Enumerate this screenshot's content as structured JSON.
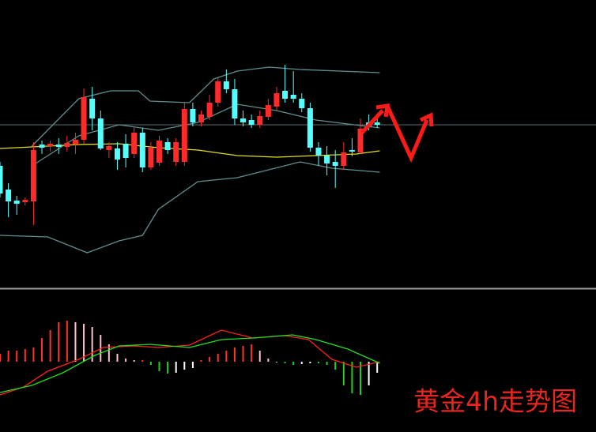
{
  "chart_data": [
    {
      "type": "candlestick",
      "title": "黄金4h走势图",
      "xlim": [
        0,
        71.1
      ],
      "ylim": [
        0,
        365
      ],
      "up_color": "#ff2a2a",
      "down_color": "#54ffff",
      "open": [
        155,
        125,
        111,
        109,
        110,
        182,
        180,
        182,
        179,
        182,
        188,
        240,
        215,
        175,
        177,
        183,
        170,
        197,
        153,
        159,
        185,
        160,
        160,
        227,
        210,
        217,
        235,
        262,
        252,
        215,
        213,
        207,
        217,
        230,
        250,
        245,
        240,
        228,
        178,
        168,
        160,
        155,
        175,
        172,
        210,
        210
      ],
      "close": [
        120,
        110,
        107,
        112,
        175,
        178,
        183,
        179,
        184,
        188,
        242,
        215,
        177,
        180,
        163,
        165,
        197,
        153,
        178,
        187,
        175,
        185,
        227,
        210,
        220,
        235,
        262,
        252,
        215,
        210,
        207,
        218,
        232,
        247,
        240,
        240,
        228,
        178,
        168,
        158,
        155,
        172,
        173,
        202,
        205,
        207
      ],
      "high": [
        160,
        133,
        117,
        115,
        185,
        187,
        187,
        190,
        193,
        197,
        253,
        255,
        225,
        185,
        185,
        195,
        205,
        203,
        185,
        193,
        190,
        190,
        235,
        235,
        225,
        245,
        267,
        277,
        265,
        225,
        220,
        225,
        240,
        255,
        283,
        275,
        247,
        235,
        185,
        180,
        175,
        185,
        190,
        215,
        220,
        217
      ],
      "low": [
        115,
        90,
        93,
        105,
        80,
        170,
        173,
        170,
        173,
        170,
        183,
        200,
        175,
        165,
        150,
        153,
        165,
        147,
        150,
        155,
        170,
        155,
        155,
        205,
        205,
        213,
        230,
        247,
        207,
        205,
        203,
        203,
        213,
        225,
        235,
        235,
        223,
        173,
        155,
        143,
        127,
        150,
        167,
        170,
        200,
        203
      ],
      "lines": [
        {
          "color": "#5f8f8f",
          "x": [
            3.8,
            9.4,
            13.2,
            16.5,
            17.9,
            22.6,
            25.5,
            28.3,
            32.1,
            35.8,
            45.3
          ],
          "values": [
            180,
            240,
            250,
            250,
            237,
            235,
            265,
            275,
            280,
            277,
            273
          ]
        },
        {
          "color": "#5f8f8f",
          "x": [
            3.8,
            9.4,
            14.2,
            18.9,
            23.6,
            28.3,
            33,
            37.7,
            45.3
          ],
          "values": [
            155,
            193,
            207,
            200,
            210,
            233,
            225,
            213,
            203
          ]
        },
        {
          "color": "#5f8f8f",
          "x": [
            0,
            5.7,
            10.4,
            14.2,
            17,
            18.9,
            23.6,
            28.3,
            35.8,
            39.6,
            45.3
          ],
          "values": [
            67,
            65,
            45,
            60,
            67,
            100,
            135,
            140,
            160,
            152,
            147
          ]
        },
        {
          "color": "#e0e020",
          "x": [
            0,
            3.8,
            9.4,
            14.2,
            18.9,
            23.6,
            28.3,
            33,
            37.7,
            42.5,
            45.3
          ],
          "values": [
            177,
            179,
            182,
            183,
            178,
            175,
            168,
            166,
            168,
            170,
            174
          ]
        }
      ],
      "price_line": {
        "value": 207,
        "color": "#5a6a70"
      }
    },
    {
      "type": "macd",
      "xlim": [
        0,
        71.1
      ],
      "ylim": [
        -89,
        88
      ],
      "rise_pos_color": "#ff3030",
      "fall_pos_color": "#ffc0cb",
      "fall_neg_color": "#20d020",
      "rise_neg_color": "#ffffff",
      "values": [
        10,
        14,
        14,
        16,
        18,
        30,
        40,
        50,
        52,
        50,
        48,
        44,
        34,
        22,
        10,
        4,
        2,
        2,
        -4,
        -12,
        -15,
        -14,
        -10,
        -8,
        2,
        6,
        10,
        14,
        18,
        20,
        22,
        14,
        4,
        0,
        -2,
        -4,
        -3,
        -2,
        -2,
        -4,
        -10,
        -30,
        -40,
        -42,
        -30,
        -14
      ],
      "lines": [
        {
          "color": "#ff2020",
          "x": [
            0,
            2.8,
            5.7,
            9.4,
            12.3,
            16,
            18.9,
            22.6,
            26.4,
            30.2,
            34,
            36.8,
            39.6,
            42.5,
            45.3
          ],
          "values": [
            -42,
            -32,
            -12,
            3,
            18,
            20,
            18,
            21,
            40,
            30,
            33,
            28,
            3,
            -7,
            0
          ]
        },
        {
          "color": "#20e020",
          "x": [
            0,
            3.8,
            7.5,
            11.3,
            14.2,
            17.9,
            22.6,
            26.4,
            30.2,
            34.9,
            37.7,
            41.5,
            45.3
          ],
          "values": [
            -39,
            -30,
            -14,
            8,
            20,
            22,
            18,
            28,
            30,
            34,
            28,
            16,
            -2
          ]
        }
      ]
    }
  ]
}
